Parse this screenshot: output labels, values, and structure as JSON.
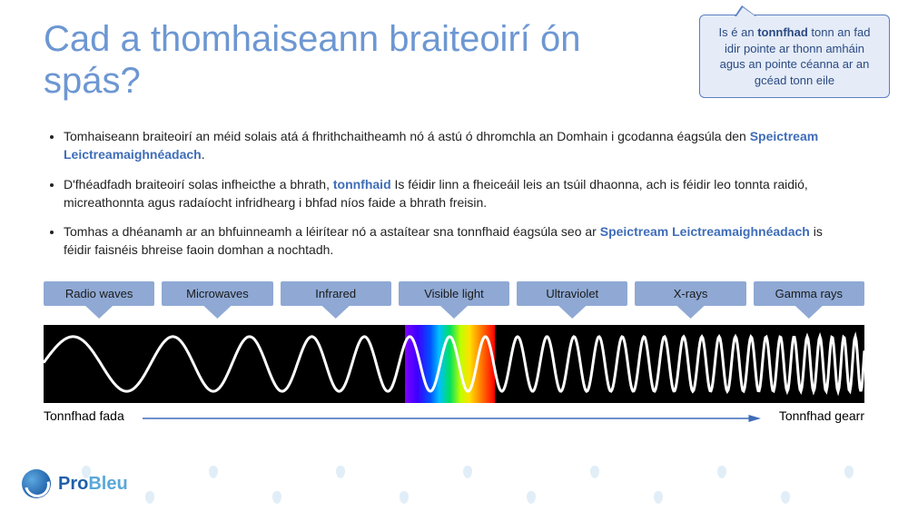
{
  "title": "Cad a thomhaiseann braiteoirí ón spás?",
  "callout": {
    "pre": "Is é an ",
    "term": "tonnfhad",
    "post": " tonn an fad idir pointe ar thonn amháin agus an pointe céanna ar an gcéad tonn eile",
    "bg": "#e5ecf8",
    "border": "#5a7fc0",
    "text_color": "#2b4a82"
  },
  "bullets": [
    {
      "pre": "Tomhaiseann braiteoirí an méid solais atá á fhrithchaitheamh nó á astú ó dhromchla an Domhain i gcodanna éagsúla den ",
      "hl": "Speictream Leictreamaighnéadach",
      "post": "."
    },
    {
      "pre": "D'fhéadfadh braiteoirí solas infheicthe a bhrath, ",
      "hl": "tonnfhaid",
      "post": " Is féidir linn a fheiceáil leis an tsúil dhaonna, ach is féidir leo tonnta raidió, micreathonnta agus radaíocht infridhearg i bhfad níos faide a bhrath freisin."
    },
    {
      "pre": "Tomhas a dhéanamh ar an bhfuinneamh a léirítear nó a astaítear sna tonnfhaid éagsúla seo ar ",
      "hl": "Speictream Leictreamaighnéadach",
      "post": " is féidir faisnéis bhreise faoin domhan a nochtadh."
    }
  ],
  "spectrum": {
    "labels": [
      "Radio waves",
      "Microwaves",
      "Infrared",
      "Visible light",
      "Ultraviolet",
      "X-rays",
      "Gamma rays"
    ],
    "label_bg": "#8fa9d4",
    "bg": "#000000",
    "wave_stroke": "#ffffff",
    "wave_width": 3,
    "visible_band_left_pct": 44,
    "visible_band_width_pct": 11,
    "rainbow": [
      "#7f00ff",
      "#3b00ff",
      "#0050ff",
      "#00c0ff",
      "#00e060",
      "#c0ff00",
      "#ffe000",
      "#ff8000",
      "#ff0000"
    ]
  },
  "axis": {
    "left": "Tonnfhad fada",
    "right": "Tonnfhad gearr",
    "arrow_color": "#3f6db8"
  },
  "logo": {
    "pro": "Pro",
    "bleu": "Bleu"
  },
  "colors": {
    "title": "#6d97d2",
    "highlight": "#3f6db8"
  }
}
